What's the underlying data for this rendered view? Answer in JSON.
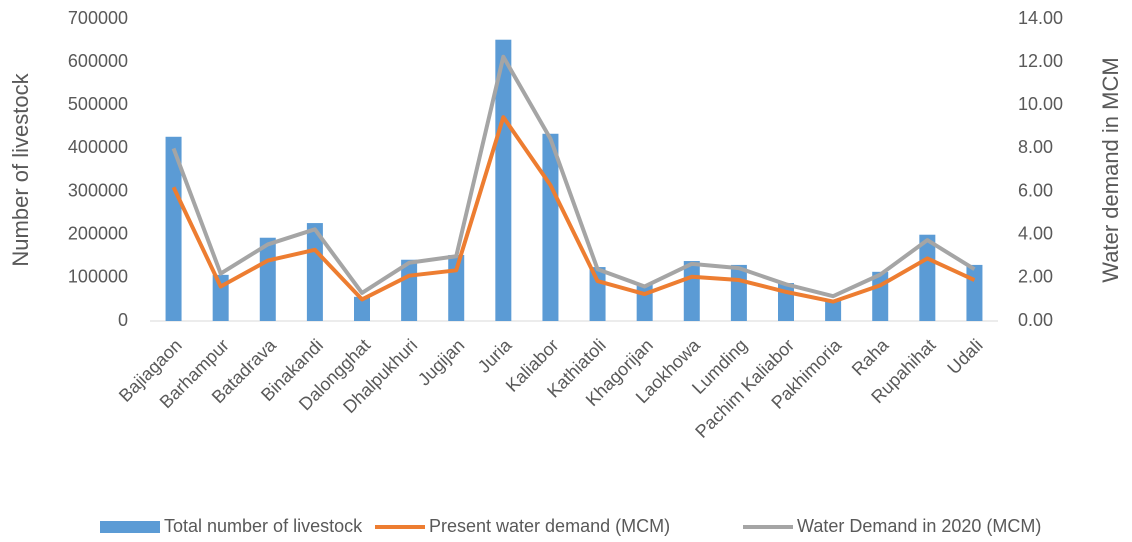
{
  "chart_data": {
    "type": "bar-line",
    "ylabel": "Number of livestock",
    "y2label": "Water demand in MCM",
    "categories": [
      "Bajiagaon",
      "Barhampur",
      "Batadrava",
      "Binakandi",
      "Dalongghat",
      "Dhalpukhuri",
      "Jugijan",
      "Juria",
      "Kaliabor",
      "Kathiatoli",
      "Khagorijan",
      "Laokhowa",
      "Lumding",
      "Pachim Kaliabor",
      "Pakhimoria",
      "Raha",
      "Rupahihat",
      "Udali"
    ],
    "series": [
      {
        "name": "Total number of livestock",
        "type": "bar",
        "color": "#5b9bd5",
        "values": [
          427000,
          107000,
          193000,
          227000,
          56000,
          142000,
          153000,
          652000,
          434000,
          125000,
          84000,
          139000,
          130000,
          88000,
          49000,
          114000,
          200000,
          130000
        ]
      },
      {
        "name": "Present water demand (MCM)",
        "type": "line",
        "axis": "y2",
        "color": "#ed7d31",
        "values": [
          6.2,
          1.6,
          2.8,
          3.3,
          1.0,
          2.1,
          2.35,
          9.45,
          6.3,
          1.85,
          1.25,
          2.05,
          1.9,
          1.35,
          0.9,
          1.65,
          2.9,
          1.9
        ]
      },
      {
        "name": "Water Demand in 2020 (MCM)",
        "type": "line",
        "axis": "y2",
        "color": "#a5a5a5",
        "values": [
          8.0,
          2.2,
          3.55,
          4.25,
          1.3,
          2.7,
          3.0,
          12.25,
          8.45,
          2.4,
          1.6,
          2.65,
          2.45,
          1.7,
          1.15,
          2.15,
          3.75,
          2.4
        ]
      }
    ],
    "ylim": [
      0,
      700000
    ],
    "yticks": [
      0,
      100000,
      200000,
      300000,
      400000,
      500000,
      600000,
      700000
    ],
    "y2lim": [
      0,
      14
    ],
    "y2ticks": [
      {
        "value": 0,
        "label": "0.00"
      },
      {
        "value": 2,
        "label": "2.00"
      },
      {
        "value": 4,
        "label": "4.00"
      },
      {
        "value": 6,
        "label": "6.00"
      },
      {
        "value": 8,
        "label": "8.00"
      },
      {
        "value": 10,
        "label": "10.00"
      },
      {
        "value": 12,
        "label": "12.00"
      },
      {
        "value": 14,
        "label": "14.00"
      }
    ],
    "legend": "bottom"
  }
}
